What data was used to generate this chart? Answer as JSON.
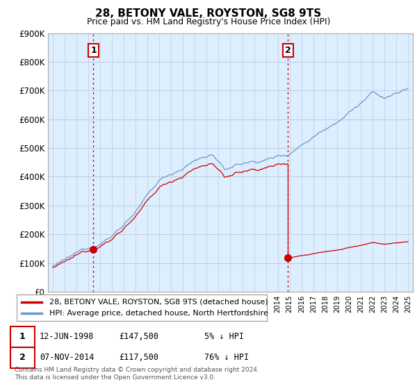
{
  "title": "28, BETONY VALE, ROYSTON, SG8 9TS",
  "subtitle": "Price paid vs. HM Land Registry's House Price Index (HPI)",
  "ylim": [
    0,
    900000
  ],
  "yticks": [
    0,
    100000,
    200000,
    300000,
    400000,
    500000,
    600000,
    700000,
    800000,
    900000
  ],
  "ytick_labels": [
    "£0",
    "£100K",
    "£200K",
    "£300K",
    "£400K",
    "£500K",
    "£600K",
    "£700K",
    "£800K",
    "£900K"
  ],
  "sale1_date": "12-JUN-1998",
  "sale1_price": 147500,
  "sale1_pct": "5%",
  "sale2_date": "07-NOV-2014",
  "sale2_price": 117500,
  "sale2_pct": "76%",
  "sale1_year": 1998.44,
  "sale2_year": 2014.85,
  "legend_line1": "28, BETONY VALE, ROYSTON, SG8 9TS (detached house)",
  "legend_line2": "HPI: Average price, detached house, North Hertfordshire",
  "footer": "Contains HM Land Registry data © Crown copyright and database right 2024.\nThis data is licensed under the Open Government Licence v3.0.",
  "line_color_red": "#cc0000",
  "line_color_blue": "#6699cc",
  "bg_chart": "#ddeeff",
  "background_color": "#ffffff",
  "grid_color": "#bbccdd"
}
